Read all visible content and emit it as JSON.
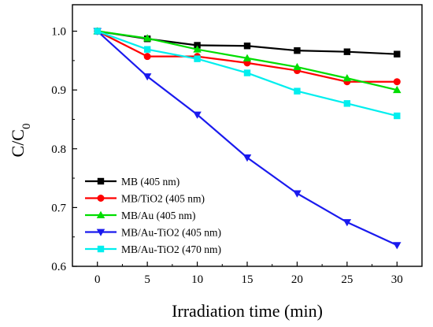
{
  "chart_data": {
    "type": "line",
    "xlabel": "Irradiation time (min)",
    "ylabel": "C/C",
    "ylabel_subscript": "0",
    "xlim": [
      -2.5,
      32.5
    ],
    "ylim": [
      0.6,
      1.045
    ],
    "x_ticks": [
      0,
      5,
      10,
      15,
      20,
      25,
      30
    ],
    "y_ticks": [
      0.6,
      0.7,
      0.8,
      0.9,
      1.0
    ],
    "y_tick_labels": [
      "0.6",
      "0.7",
      "0.8",
      "0.9",
      "1.0"
    ],
    "legend_position": "bottom-left",
    "x": [
      0,
      5,
      10,
      15,
      20,
      25,
      30
    ],
    "series": [
      {
        "name": "MB (405 nm)",
        "color": "#000000",
        "marker": "square",
        "values": [
          1.0,
          0.987,
          0.976,
          0.975,
          0.967,
          0.965,
          0.961
        ]
      },
      {
        "name": "MB/TiO2 (405 nm)",
        "color": "#ff0000",
        "marker": "circle",
        "values": [
          1.0,
          0.957,
          0.957,
          0.946,
          0.933,
          0.914,
          0.914
        ]
      },
      {
        "name": "MB/Au (405 nm)",
        "color": "#00dd00",
        "marker": "triangle-up",
        "values": [
          1.0,
          0.988,
          0.969,
          0.954,
          0.939,
          0.92,
          0.9
        ]
      },
      {
        "name": "MB/Au-TiO2 (405 nm)",
        "color": "#1a1aee",
        "marker": "triangle-down",
        "values": [
          1.0,
          0.923,
          0.858,
          0.785,
          0.724,
          0.675,
          0.636
        ]
      },
      {
        "name": "MB/Au-TiO2 (470 nm)",
        "color": "#00eeee",
        "marker": "square",
        "values": [
          1.0,
          0.969,
          0.953,
          0.929,
          0.898,
          0.877,
          0.856
        ]
      }
    ]
  }
}
